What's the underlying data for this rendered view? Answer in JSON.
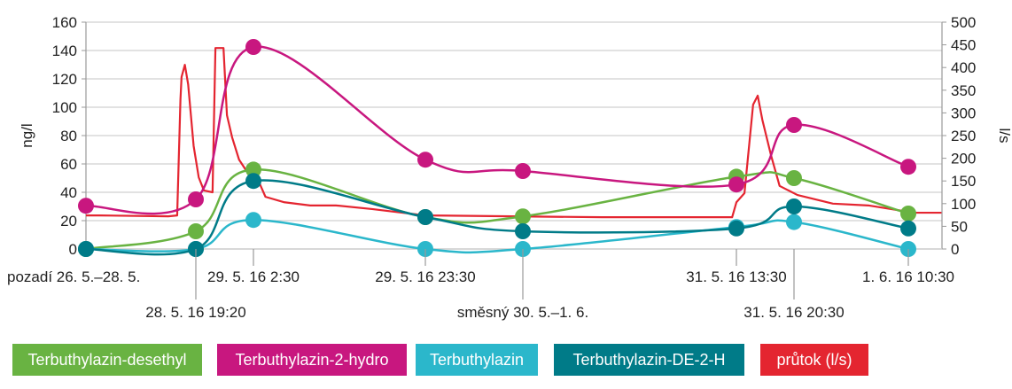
{
  "chart_data": {
    "type": "line",
    "title": "",
    "ylabel": "ng/l",
    "y2label": "l/s",
    "ylim": [
      0,
      160
    ],
    "y2lim": [
      0,
      500
    ],
    "yticks": [
      "0",
      "20",
      "40",
      "60",
      "80",
      "100",
      "120",
      "140",
      "160"
    ],
    "y2ticks": [
      "0",
      "50",
      "100",
      "150",
      "200",
      "250",
      "300",
      "350",
      "400",
      "450",
      "500"
    ],
    "grid": true,
    "legend_position": "bottom",
    "categories": [
      "pozadí 26. 5.–28. 5.",
      "28. 5. 16 19:20",
      "29. 5. 16 2:30",
      "29. 5. 16 23:30",
      "směsný 30. 5.–1. 6.",
      "31. 5. 16 13:30",
      "31. 5. 16 20:30",
      "1. 6. 16 10:30"
    ],
    "series": [
      {
        "name": "Terbuthylazin-desethyl",
        "color": "#69b342",
        "values": [
          0,
          12.5,
          56,
          22.5,
          23,
          51,
          50,
          25
        ]
      },
      {
        "name": "Terbuthylazin-2-hydro",
        "color": "#c8177f",
        "values": [
          30.5,
          35,
          142.5,
          63,
          55,
          45.5,
          87.5,
          58
        ]
      },
      {
        "name": "Terbuthylazin",
        "color": "#2bb7cb",
        "values": [
          0,
          0,
          20.5,
          0,
          0,
          15.5,
          19,
          0
        ]
      },
      {
        "name": "Terbuthylazin-DE-2-H",
        "color": "#007b88",
        "values": [
          0,
          0,
          48,
          22.5,
          12.5,
          14.5,
          30,
          14.5
        ]
      }
    ],
    "flow": {
      "name": "průtok (l/s)",
      "color": "#e42530",
      "axis": "right",
      "x_index": [
        0,
        0.12,
        0.75,
        0.83,
        0.86,
        0.87,
        0.9,
        0.93,
        0.98,
        1.05,
        1.14,
        1.29,
        1.34,
        1.48,
        1.54,
        1.63,
        1.75,
        1.91,
        2.02,
        2.07,
        2.18,
        2.33,
        2.48,
        2.69,
        3,
        4.37,
        4.98,
        5.0,
        5.14,
        5.29,
        5.37,
        5.45,
        5.6,
        5.75,
        6.03,
        6.34,
        6.65,
        6.95,
        7.04,
        7.29
      ],
      "values": [
        74,
        74,
        72,
        74,
        330,
        379,
        406,
        363,
        227,
        158,
        129,
        125,
        443,
        443,
        295,
        246,
        197,
        166,
        158,
        115,
        103,
        96,
        96,
        88,
        74,
        70,
        70,
        103,
        123,
        318,
        338,
        285,
        207,
        139,
        119,
        100,
        96,
        84,
        80,
        80
      ]
    }
  }
}
